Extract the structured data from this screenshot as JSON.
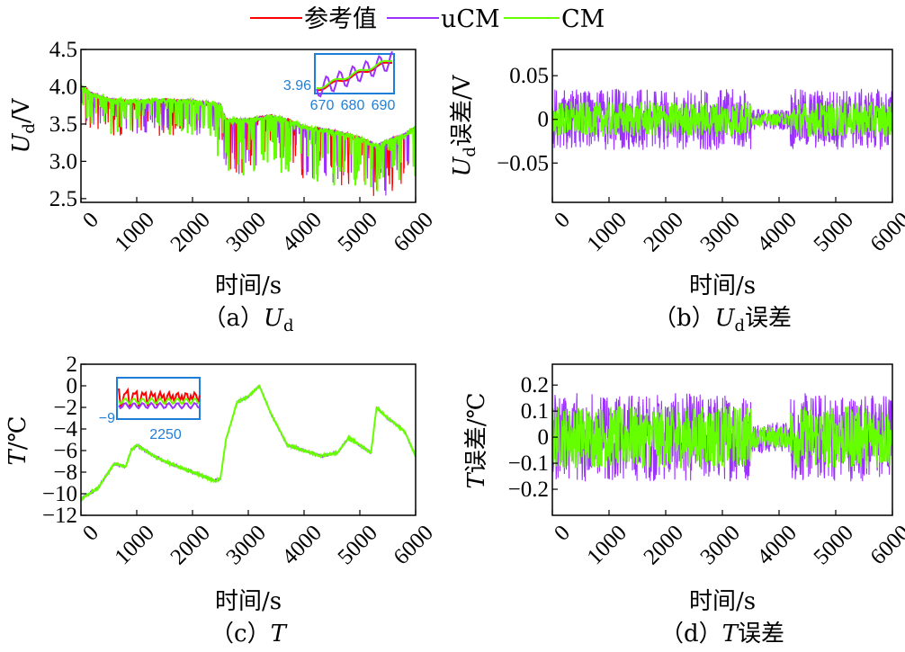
{
  "legend": {
    "items": [
      {
        "label": "参考值",
        "color": "#ff0000"
      },
      {
        "label": "uCM",
        "color": "#9b30ff"
      },
      {
        "label": "CM",
        "color": "#66ff00"
      }
    ]
  },
  "colors": {
    "ref": "#ff0000",
    "ucm": "#9b30ff",
    "cm": "#66ff00",
    "inset": "#1f7fd8"
  },
  "chart_data": [
    {
      "id": "a",
      "type": "line",
      "caption_prefix": "（a）",
      "caption_main": "U",
      "caption_sub": "d",
      "caption_suffix": "",
      "ylabel_main": "U",
      "ylabel_sub": "d",
      "ylabel_suffix": "/V",
      "xlabel": "时间/s",
      "xlim": [
        0,
        6000
      ],
      "ylim": [
        2.45,
        4.5
      ],
      "xticks": [
        "0",
        "1000",
        "2000",
        "3000",
        "4000",
        "5000",
        "6000"
      ],
      "yticks": [
        "2.5",
        "3.0",
        "3.5",
        "4.0",
        "4.5"
      ],
      "series": [
        {
          "name": "参考值",
          "x": [
            0,
            200,
            500,
            800,
            1000,
            1500,
            2000,
            2500,
            2600,
            3000,
            3400,
            3700,
            4000,
            4500,
            4800,
            5000,
            5300,
            5600,
            5800,
            6000
          ],
          "y": [
            4.0,
            3.9,
            3.82,
            3.8,
            3.8,
            3.82,
            3.8,
            3.75,
            3.55,
            3.55,
            3.6,
            3.55,
            3.45,
            3.4,
            3.35,
            3.3,
            3.2,
            3.3,
            3.35,
            3.45
          ]
        },
        {
          "name": "uCM",
          "x": [
            0,
            200,
            500,
            800,
            1000,
            1500,
            2000,
            2500,
            2600,
            3000,
            3400,
            3700,
            4000,
            4500,
            4800,
            5000,
            5300,
            5600,
            5800,
            6000
          ],
          "y": [
            4.0,
            3.9,
            3.82,
            3.8,
            3.8,
            3.82,
            3.8,
            3.75,
            3.55,
            3.55,
            3.6,
            3.55,
            3.45,
            3.4,
            3.35,
            3.3,
            3.2,
            3.3,
            3.35,
            3.45
          ]
        },
        {
          "name": "CM",
          "x": [
            0,
            200,
            500,
            800,
            1000,
            1500,
            2000,
            2500,
            2600,
            3000,
            3400,
            3700,
            4000,
            4500,
            4800,
            5000,
            5300,
            5600,
            5800,
            6000
          ],
          "y": [
            4.0,
            3.9,
            3.82,
            3.8,
            3.8,
            3.82,
            3.8,
            3.75,
            3.55,
            3.55,
            3.6,
            3.55,
            3.45,
            3.4,
            3.35,
            3.3,
            3.2,
            3.3,
            3.35,
            3.45
          ]
        }
      ],
      "inset": {
        "xticks": [
          "670",
          "680",
          "690"
        ],
        "yticks": [
          "3.96"
        ]
      }
    },
    {
      "id": "b",
      "type": "line",
      "caption_prefix": "（b）",
      "caption_main": "U",
      "caption_sub": "d",
      "caption_suffix": "误差",
      "ylabel_main": "U",
      "ylabel_sub": "d",
      "ylabel_suffix": "误差/V",
      "xlabel": "时间/s",
      "xlim": [
        0,
        6000
      ],
      "ylim": [
        -0.095,
        0.08
      ],
      "xticks": [
        "0",
        "1000",
        "2000",
        "3000",
        "4000",
        "5000",
        "6000"
      ],
      "yticks": [
        "0.05",
        "0",
        "−0.05"
      ],
      "series": [
        {
          "name": "uCM",
          "noise_amplitude": 0.035
        },
        {
          "name": "CM",
          "noise_amplitude": 0.02
        }
      ]
    },
    {
      "id": "c",
      "type": "line",
      "caption_prefix": "（c）",
      "caption_main": "T",
      "caption_sub": "",
      "caption_suffix": "",
      "ylabel_main": "T",
      "ylabel_sub": "",
      "ylabel_suffix": "/℃",
      "xlabel": "时间/s",
      "xlim": [
        0,
        6000
      ],
      "ylim": [
        -12,
        2
      ],
      "xticks": [
        "0",
        "1000",
        "2000",
        "3000",
        "4000",
        "5000",
        "6000"
      ],
      "yticks": [
        "2",
        "0",
        "−2",
        "−4",
        "−6",
        "−8",
        "−10",
        "−12"
      ],
      "series": [
        {
          "name": "参考值",
          "x": [
            0,
            300,
            600,
            800,
            900,
            1000,
            1300,
            1500,
            2000,
            2400,
            2500,
            2600,
            2800,
            3000,
            3200,
            3400,
            3700,
            4000,
            4300,
            4600,
            4800,
            5000,
            5200,
            5300,
            5500,
            5800,
            6000
          ],
          "y": [
            -10.5,
            -9.5,
            -7.2,
            -7.5,
            -6.0,
            -5.5,
            -6.5,
            -7.0,
            -8.0,
            -8.8,
            -8.6,
            -5.0,
            -1.5,
            -1.0,
            0.0,
            -2.5,
            -5.5,
            -6.0,
            -6.5,
            -6.2,
            -4.8,
            -5.5,
            -6.2,
            -2.0,
            -3.0,
            -4.2,
            -6.5
          ]
        },
        {
          "name": "uCM",
          "x": [
            0,
            300,
            600,
            800,
            900,
            1000,
            1300,
            1500,
            2000,
            2400,
            2500,
            2600,
            2800,
            3000,
            3200,
            3400,
            3700,
            4000,
            4300,
            4600,
            4800,
            5000,
            5200,
            5300,
            5500,
            5800,
            6000
          ],
          "y": [
            -10.5,
            -9.5,
            -7.2,
            -7.5,
            -6.0,
            -5.5,
            -6.5,
            -7.0,
            -8.0,
            -8.8,
            -8.6,
            -5.0,
            -1.5,
            -1.0,
            0.0,
            -2.5,
            -5.5,
            -6.0,
            -6.5,
            -6.2,
            -4.8,
            -5.5,
            -6.2,
            -2.0,
            -3.0,
            -4.2,
            -6.5
          ]
        },
        {
          "name": "CM",
          "x": [
            0,
            300,
            600,
            800,
            900,
            1000,
            1300,
            1500,
            2000,
            2400,
            2500,
            2600,
            2800,
            3000,
            3200,
            3400,
            3700,
            4000,
            4300,
            4600,
            4800,
            5000,
            5200,
            5300,
            5500,
            5800,
            6000
          ],
          "y": [
            -10.5,
            -9.5,
            -7.2,
            -7.5,
            -6.0,
            -5.5,
            -6.5,
            -7.0,
            -8.0,
            -8.8,
            -8.6,
            -5.0,
            -1.5,
            -1.0,
            0.0,
            -2.5,
            -5.5,
            -6.0,
            -6.5,
            -6.2,
            -4.8,
            -5.5,
            -6.2,
            -2.0,
            -3.0,
            -4.2,
            -6.5
          ]
        }
      ],
      "inset": {
        "xticks": [
          "2250"
        ],
        "yticks": [
          "−9"
        ]
      }
    },
    {
      "id": "d",
      "type": "line",
      "caption_prefix": "（d）",
      "caption_main": "T",
      "caption_sub": "",
      "caption_suffix": "误差",
      "ylabel_main": "T",
      "ylabel_sub": "",
      "ylabel_suffix": "误差/℃",
      "xlabel": "时间/s",
      "xlim": [
        0,
        6000
      ],
      "ylim": [
        -0.3,
        0.28
      ],
      "xticks": [
        "0",
        "1000",
        "2000",
        "3000",
        "4000",
        "5000",
        "6000"
      ],
      "yticks": [
        "0.2",
        "0.1",
        "0",
        "−0.1",
        "−0.2"
      ],
      "series": [
        {
          "name": "uCM",
          "noise_amplitude": 0.17
        },
        {
          "name": "CM",
          "noise_amplitude": 0.12
        }
      ]
    }
  ]
}
